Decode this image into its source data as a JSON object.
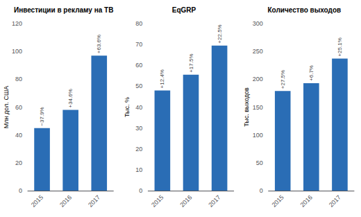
{
  "chart_data": [
    {
      "type": "bar",
      "title": "Инвестиции в рекламу на ТВ",
      "ylabel": "Млн дол. США",
      "categories": [
        "2015",
        "2016",
        "2017"
      ],
      "values": [
        45,
        58,
        97
      ],
      "annotations": [
        "−37.9%",
        "+34.6%",
        "+63.6%"
      ],
      "color": "#2a6db5",
      "ylim": [
        0,
        120
      ],
      "yticks": [
        0,
        20,
        40,
        60,
        80,
        100,
        120
      ],
      "grid": false
    },
    {
      "type": "bar",
      "title": "EqGRP",
      "ylabel": "Тыс. %",
      "categories": [
        "2015",
        "2016",
        "2017"
      ],
      "values": [
        48,
        55.5,
        69.5
      ],
      "annotations": [
        "+12.4%",
        "+17.5%",
        "+22.5%"
      ],
      "color": "#2a6db5",
      "ylim": [
        0,
        80
      ],
      "yticks": [
        0,
        10,
        20,
        30,
        40,
        50,
        60,
        70,
        80
      ],
      "grid": false
    },
    {
      "type": "bar",
      "title": "Количество выходов",
      "ylabel": "Тыс. выходов",
      "categories": [
        "2015",
        "2016",
        "2017"
      ],
      "values": [
        179,
        193,
        237
      ],
      "annotations": [
        "+27.5%",
        "+6.7%",
        "+25.1%"
      ],
      "color": "#2a6db5",
      "ylim": [
        0,
        300
      ],
      "yticks": [
        0,
        50,
        100,
        150,
        200,
        250,
        300
      ],
      "grid": false
    }
  ]
}
